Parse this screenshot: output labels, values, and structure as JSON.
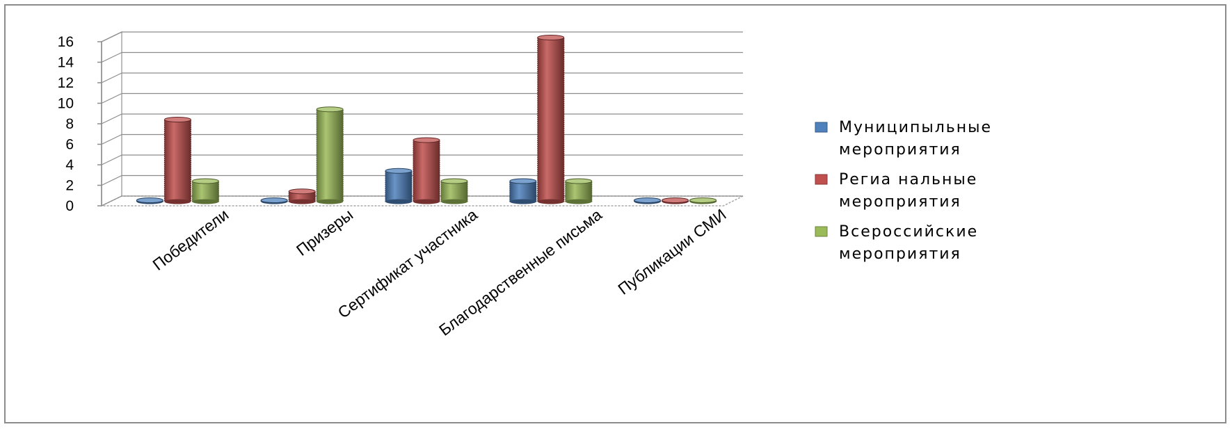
{
  "chart_data": {
    "type": "bar",
    "categories": [
      "Победители",
      "Призеры",
      "Сертификат участника",
      "Благодарственные письма",
      "Публикации СМИ"
    ],
    "series": [
      {
        "name": [
          "Муниципыльные",
          "мероприятия"
        ],
        "values": [
          0,
          0,
          3,
          2,
          0
        ],
        "color": "#4f81bd"
      },
      {
        "name": [
          "Региа нальные",
          "мероприятия"
        ],
        "values": [
          8,
          1,
          6,
          16,
          0
        ],
        "color": "#c0504d"
      },
      {
        "name": [
          "Всероссийские",
          "мероприятия"
        ],
        "values": [
          2,
          9,
          2,
          2,
          0
        ],
        "color": "#9bbb59"
      }
    ],
    "yticks": [
      "0",
      "2",
      "4",
      "6",
      "8",
      "10",
      "12",
      "14",
      "16"
    ],
    "ylim": [
      0,
      16
    ],
    "grid": true,
    "legend_position": "right",
    "style": "3d-cylinder"
  }
}
